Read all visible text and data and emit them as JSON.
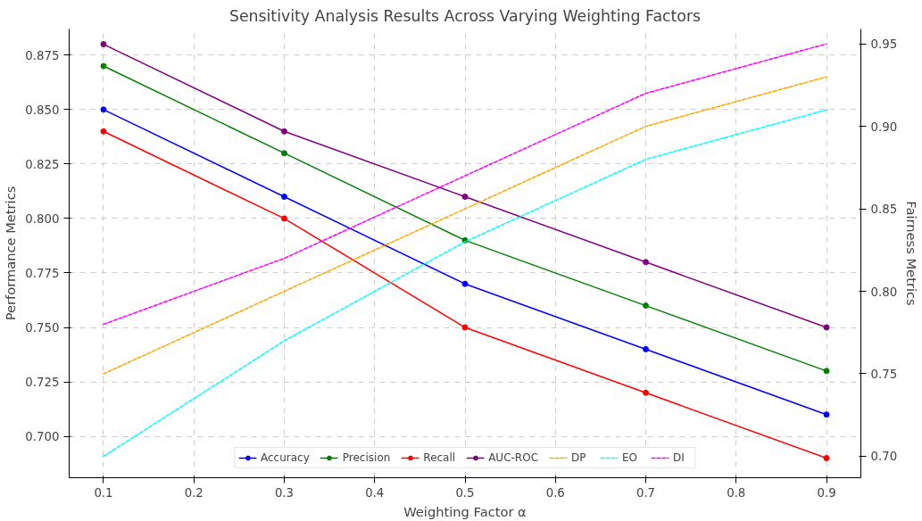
{
  "chart_data": {
    "type": "line",
    "title": "Sensitivity Analysis Results Across Varying Weighting Factors",
    "xlabel": "Weighting Factor α",
    "ylabel": "Performance Metrics",
    "y2label": "Fairness Metrics",
    "x": [
      0.1,
      0.3,
      0.5,
      0.7,
      0.9
    ],
    "xlim": [
      0.062,
      0.938
    ],
    "xticks": [
      0.1,
      0.2,
      0.3,
      0.4,
      0.5,
      0.6,
      0.7,
      0.8,
      0.9
    ],
    "ylim": [
      0.681,
      0.887
    ],
    "yticks": [
      {
        "value": 0.7,
        "label": "0.700"
      },
      {
        "value": 0.725,
        "label": "0.725"
      },
      {
        "value": 0.75,
        "label": "0.750"
      },
      {
        "value": 0.775,
        "label": "0.775"
      },
      {
        "value": 0.8,
        "label": "0.800"
      },
      {
        "value": 0.825,
        "label": "0.825"
      },
      {
        "value": 0.85,
        "label": "0.850"
      },
      {
        "value": 0.875,
        "label": "0.875"
      }
    ],
    "y2lim": [
      0.687,
      0.959
    ],
    "y2ticks": [
      {
        "value": 0.7,
        "label": "0.70"
      },
      {
        "value": 0.75,
        "label": "0.75"
      },
      {
        "value": 0.8,
        "label": "0.80"
      },
      {
        "value": 0.85,
        "label": "0.85"
      },
      {
        "value": 0.9,
        "label": "0.90"
      },
      {
        "value": 0.95,
        "label": "0.95"
      }
    ],
    "grid": true,
    "legend": "bottom",
    "series": [
      {
        "name": "Accuracy",
        "color": "#0000ff",
        "values": [
          0.85,
          0.81,
          0.77,
          0.74,
          0.71
        ],
        "marker": "circle",
        "line_style": "solid"
      },
      {
        "name": "Precision",
        "color": "#008000",
        "values": [
          0.87,
          0.83,
          0.79,
          0.76,
          0.73
        ],
        "marker": "circle",
        "line_style": "solid"
      },
      {
        "name": "Recall",
        "color": "#ff0000",
        "values": [
          0.84,
          0.8,
          0.75,
          0.72,
          0.69
        ],
        "marker": "circle",
        "line_style": "solid"
      },
      {
        "name": "AUC-ROC",
        "color": "#800080",
        "values": [
          0.88,
          0.84,
          0.81,
          0.78,
          0.75
        ],
        "marker": "circle",
        "line_style": "solid"
      },
      {
        "name": "DP",
        "color": "#ffa500",
        "values": [
          0.75,
          0.8,
          0.85,
          0.9,
          0.93
        ],
        "axis": "y2",
        "marker": "none",
        "line_style": "dashed"
      },
      {
        "name": "EO",
        "color": "#00ffff",
        "values": [
          0.7,
          0.77,
          0.83,
          0.88,
          0.91
        ],
        "axis": "y2",
        "marker": "none",
        "line_style": "dashed"
      },
      {
        "name": "DI",
        "color": "#ff00ff",
        "values": [
          0.78,
          0.82,
          0.87,
          0.92,
          0.95
        ],
        "axis": "y2",
        "marker": "none",
        "line_style": "dashed"
      }
    ]
  }
}
